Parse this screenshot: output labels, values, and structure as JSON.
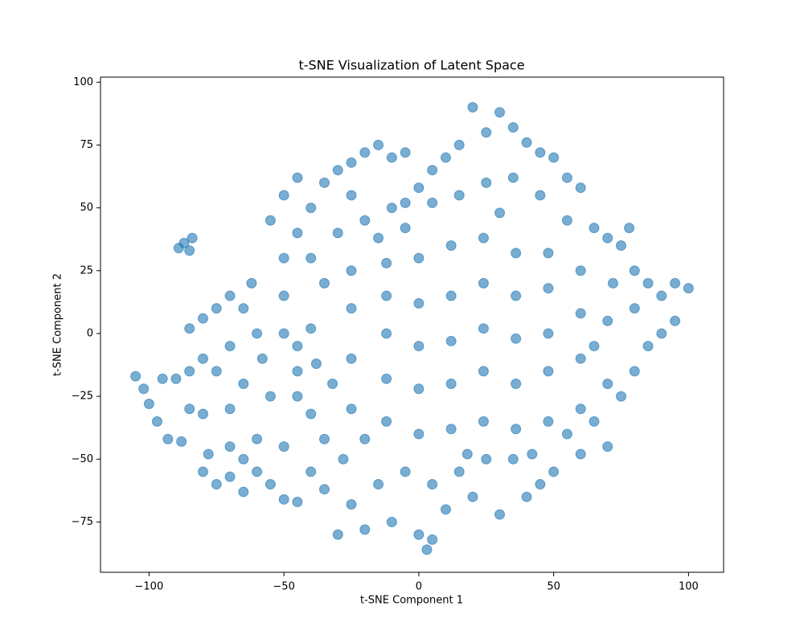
{
  "chart_data": {
    "type": "scatter",
    "title": "t-SNE Visualization of Latent Space",
    "x_label": "t-SNE Component 1",
    "y_label": "t-SNE Component 2",
    "color": "#1f77b4",
    "xlim": [
      -118,
      113
    ],
    "ylim": [
      -95,
      102
    ],
    "xticks": [
      {
        "value": -100,
        "label": "−100"
      },
      {
        "value": -50,
        "label": "−50"
      },
      0,
      50,
      100
    ],
    "yticks": [
      {
        "value": -75,
        "label": "−75"
      },
      {
        "value": -50,
        "label": "−50"
      },
      {
        "value": -25,
        "label": "−25"
      },
      0,
      25,
      50,
      75,
      100
    ],
    "x": [
      -87,
      -84,
      -89,
      -85,
      -105,
      -102,
      -100,
      -97,
      -93,
      -88,
      -95,
      -90,
      -85,
      -80,
      -80,
      -75,
      -70,
      -65,
      -60,
      -55,
      -50,
      -45,
      -50,
      -60,
      -70,
      -78,
      -65,
      -40,
      -85,
      -80,
      -75,
      -70,
      -65,
      -62,
      -70,
      -75,
      -65,
      -70,
      -80,
      -85,
      -60,
      -58,
      -50,
      -45,
      -40,
      -55,
      -45,
      -40,
      -35,
      -50,
      -45,
      -40,
      -50,
      -45,
      -35,
      -30,
      -25,
      -20,
      -15,
      -10,
      -5,
      -55,
      -40,
      -35,
      -50,
      -45,
      -38,
      20,
      30,
      35,
      25,
      15,
      10,
      40,
      45,
      50,
      55,
      60,
      5,
      0,
      -5,
      -25,
      -20,
      -10,
      -30,
      -15,
      5,
      15,
      25,
      35,
      45,
      65,
      70,
      75,
      78,
      55,
      85,
      90,
      95,
      100,
      95,
      90,
      85,
      80,
      75,
      80,
      70,
      70,
      65,
      70,
      80,
      72,
      -30,
      -20,
      -10,
      0,
      5,
      3,
      10,
      20,
      30,
      40,
      45,
      50,
      60,
      -35,
      -25,
      -15,
      -5,
      -28,
      5,
      15,
      25,
      35,
      -25,
      -25,
      -25,
      -25,
      -12,
      -12,
      -12,
      -12,
      -12,
      0,
      0,
      0,
      0,
      0,
      12,
      12,
      12,
      12,
      12,
      24,
      24,
      24,
      24,
      24,
      36,
      36,
      36,
      36,
      36,
      48,
      48,
      48,
      48,
      48,
      60,
      60,
      60,
      60,
      -20,
      -5,
      30,
      18,
      42,
      55,
      65,
      -32
    ],
    "y": [
      36,
      38,
      34,
      33,
      -17,
      -22,
      -28,
      -35,
      -42,
      -43,
      -18,
      -18,
      -30,
      -32,
      -55,
      -60,
      -57,
      -50,
      -55,
      -60,
      -66,
      -67,
      -45,
      -42,
      -45,
      -48,
      -63,
      -55,
      2,
      6,
      10,
      15,
      10,
      20,
      -5,
      -15,
      -20,
      -30,
      -10,
      -15,
      0,
      -10,
      0,
      -5,
      2,
      -25,
      -25,
      -32,
      -42,
      30,
      40,
      50,
      55,
      62,
      60,
      65,
      68,
      72,
      75,
      70,
      72,
      45,
      30,
      20,
      15,
      -15,
      -12,
      90,
      88,
      82,
      80,
      75,
      70,
      76,
      72,
      70,
      62,
      58,
      65,
      58,
      52,
      55,
      45,
      50,
      40,
      38,
      52,
      55,
      60,
      62,
      55,
      42,
      38,
      35,
      42,
      45,
      20,
      15,
      20,
      18,
      5,
      0,
      -5,
      -15,
      -25,
      10,
      5,
      -20,
      -35,
      -45,
      25,
      20,
      -80,
      -78,
      -75,
      -80,
      -82,
      -86,
      -70,
      -65,
      -72,
      -65,
      -60,
      -55,
      -48,
      -62,
      -68,
      -60,
      -55,
      -50,
      -60,
      -55,
      -50,
      -50,
      -30,
      -10,
      10,
      25,
      -35,
      -18,
      0,
      15,
      28,
      -40,
      -22,
      -5,
      12,
      30,
      -38,
      -20,
      -3,
      15,
      35,
      -35,
      -15,
      2,
      20,
      38,
      -38,
      -20,
      -2,
      15,
      32,
      -35,
      -15,
      0,
      18,
      32,
      -30,
      -10,
      8,
      25,
      -42,
      42,
      48,
      -48,
      -48,
      -40,
      -5,
      -20
    ]
  }
}
